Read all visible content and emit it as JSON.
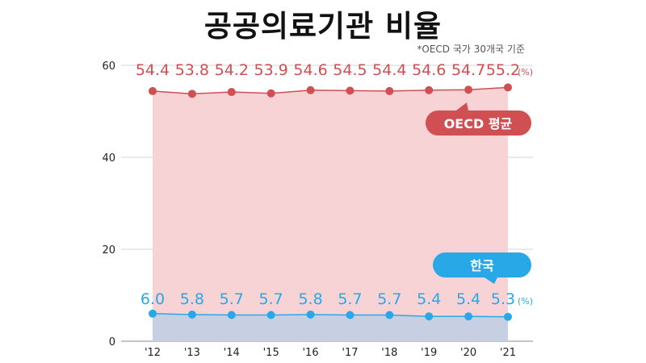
{
  "title": "공공의료기관 비율",
  "note": "*OECD 국가 30개국 기준",
  "chart_data": {
    "type": "area",
    "categories": [
      "'12",
      "'13",
      "'14",
      "'15",
      "'16",
      "'17",
      "'18",
      "'19",
      "'20",
      "'21"
    ],
    "series": [
      {
        "name": "OECD 평균",
        "color": "#d04f53",
        "fill": "#f7d3d5",
        "values": [
          54.4,
          53.8,
          54.2,
          53.9,
          54.6,
          54.5,
          54.4,
          54.6,
          54.7,
          55.2
        ],
        "labels": [
          "54.4",
          "53.8",
          "54.2",
          "53.9",
          "54.6",
          "54.5",
          "54.4",
          "54.6",
          "54.7",
          "55.2"
        ]
      },
      {
        "name": "한국",
        "color": "#29a8e8",
        "fill": "#c7d0e2",
        "values": [
          6.0,
          5.8,
          5.7,
          5.7,
          5.8,
          5.7,
          5.7,
          5.4,
          5.4,
          5.3
        ],
        "labels": [
          "6.0",
          "5.8",
          "5.7",
          "5.7",
          "5.8",
          "5.7",
          "5.7",
          "5.4",
          "5.4",
          "5.3"
        ]
      }
    ],
    "unit_label": "(%)",
    "yticks": [
      0,
      20,
      40,
      60
    ],
    "ylim": [
      0,
      60
    ],
    "grid": true
  }
}
